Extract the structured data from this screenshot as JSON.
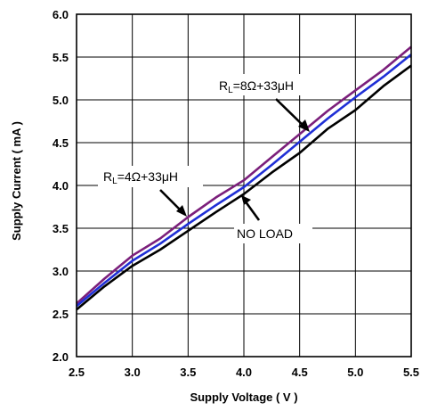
{
  "chart_data": {
    "type": "line",
    "xlabel": "Supply Voltage ( V )",
    "ylabel": "Supply Current ( mA )",
    "xlim": [
      2.5,
      5.5
    ],
    "ylim": [
      2.0,
      6.0
    ],
    "x_ticks": [
      "2.5",
      "3.0",
      "3.5",
      "4.0",
      "4.5",
      "5.0",
      "5.5"
    ],
    "y_ticks": [
      "2.0",
      "2.5",
      "3.0",
      "3.5",
      "4.0",
      "4.5",
      "5.0",
      "5.5",
      "6.0"
    ],
    "x_tick_values": [
      2.5,
      3.0,
      3.5,
      4.0,
      4.5,
      5.0,
      5.5
    ],
    "y_tick_values": [
      2.0,
      2.5,
      3.0,
      3.5,
      4.0,
      4.5,
      5.0,
      5.5,
      6.0
    ],
    "grid": true,
    "series": [
      {
        "name": "R_L=8Ω+33μH",
        "color": "#7b1f7b",
        "points": [
          [
            2.5,
            2.62
          ],
          [
            2.75,
            2.91
          ],
          [
            3.0,
            3.18
          ],
          [
            3.25,
            3.38
          ],
          [
            3.5,
            3.63
          ],
          [
            3.75,
            3.86
          ],
          [
            4.0,
            4.06
          ],
          [
            4.25,
            4.33
          ],
          [
            4.5,
            4.6
          ],
          [
            4.75,
            4.87
          ],
          [
            5.0,
            5.11
          ],
          [
            5.25,
            5.35
          ],
          [
            5.5,
            5.62
          ]
        ]
      },
      {
        "name": "R_L=4Ω+33μH",
        "color": "#1f2fd6",
        "points": [
          [
            2.5,
            2.59
          ],
          [
            2.75,
            2.86
          ],
          [
            3.0,
            3.12
          ],
          [
            3.25,
            3.32
          ],
          [
            3.5,
            3.55
          ],
          [
            3.75,
            3.77
          ],
          [
            4.0,
            3.98
          ],
          [
            4.25,
            4.24
          ],
          [
            4.5,
            4.51
          ],
          [
            4.75,
            4.78
          ],
          [
            5.0,
            5.03
          ],
          [
            5.25,
            5.27
          ],
          [
            5.5,
            5.53
          ]
        ]
      },
      {
        "name": "NO LOAD",
        "color": "#000000",
        "points": [
          [
            2.5,
            2.55
          ],
          [
            2.75,
            2.82
          ],
          [
            3.0,
            3.06
          ],
          [
            3.25,
            3.25
          ],
          [
            3.5,
            3.47
          ],
          [
            3.75,
            3.69
          ],
          [
            4.0,
            3.9
          ],
          [
            4.25,
            4.15
          ],
          [
            4.5,
            4.38
          ],
          [
            4.75,
            4.66
          ],
          [
            5.0,
            4.88
          ],
          [
            5.25,
            5.16
          ],
          [
            5.5,
            5.4
          ]
        ]
      }
    ],
    "annotations": [
      {
        "main": "R",
        "sub": "L",
        "rest": "=8Ω+33μH"
      },
      {
        "main": "R",
        "sub": "L",
        "rest": "=4Ω+33μH"
      },
      {
        "text": "NO LOAD"
      }
    ]
  }
}
